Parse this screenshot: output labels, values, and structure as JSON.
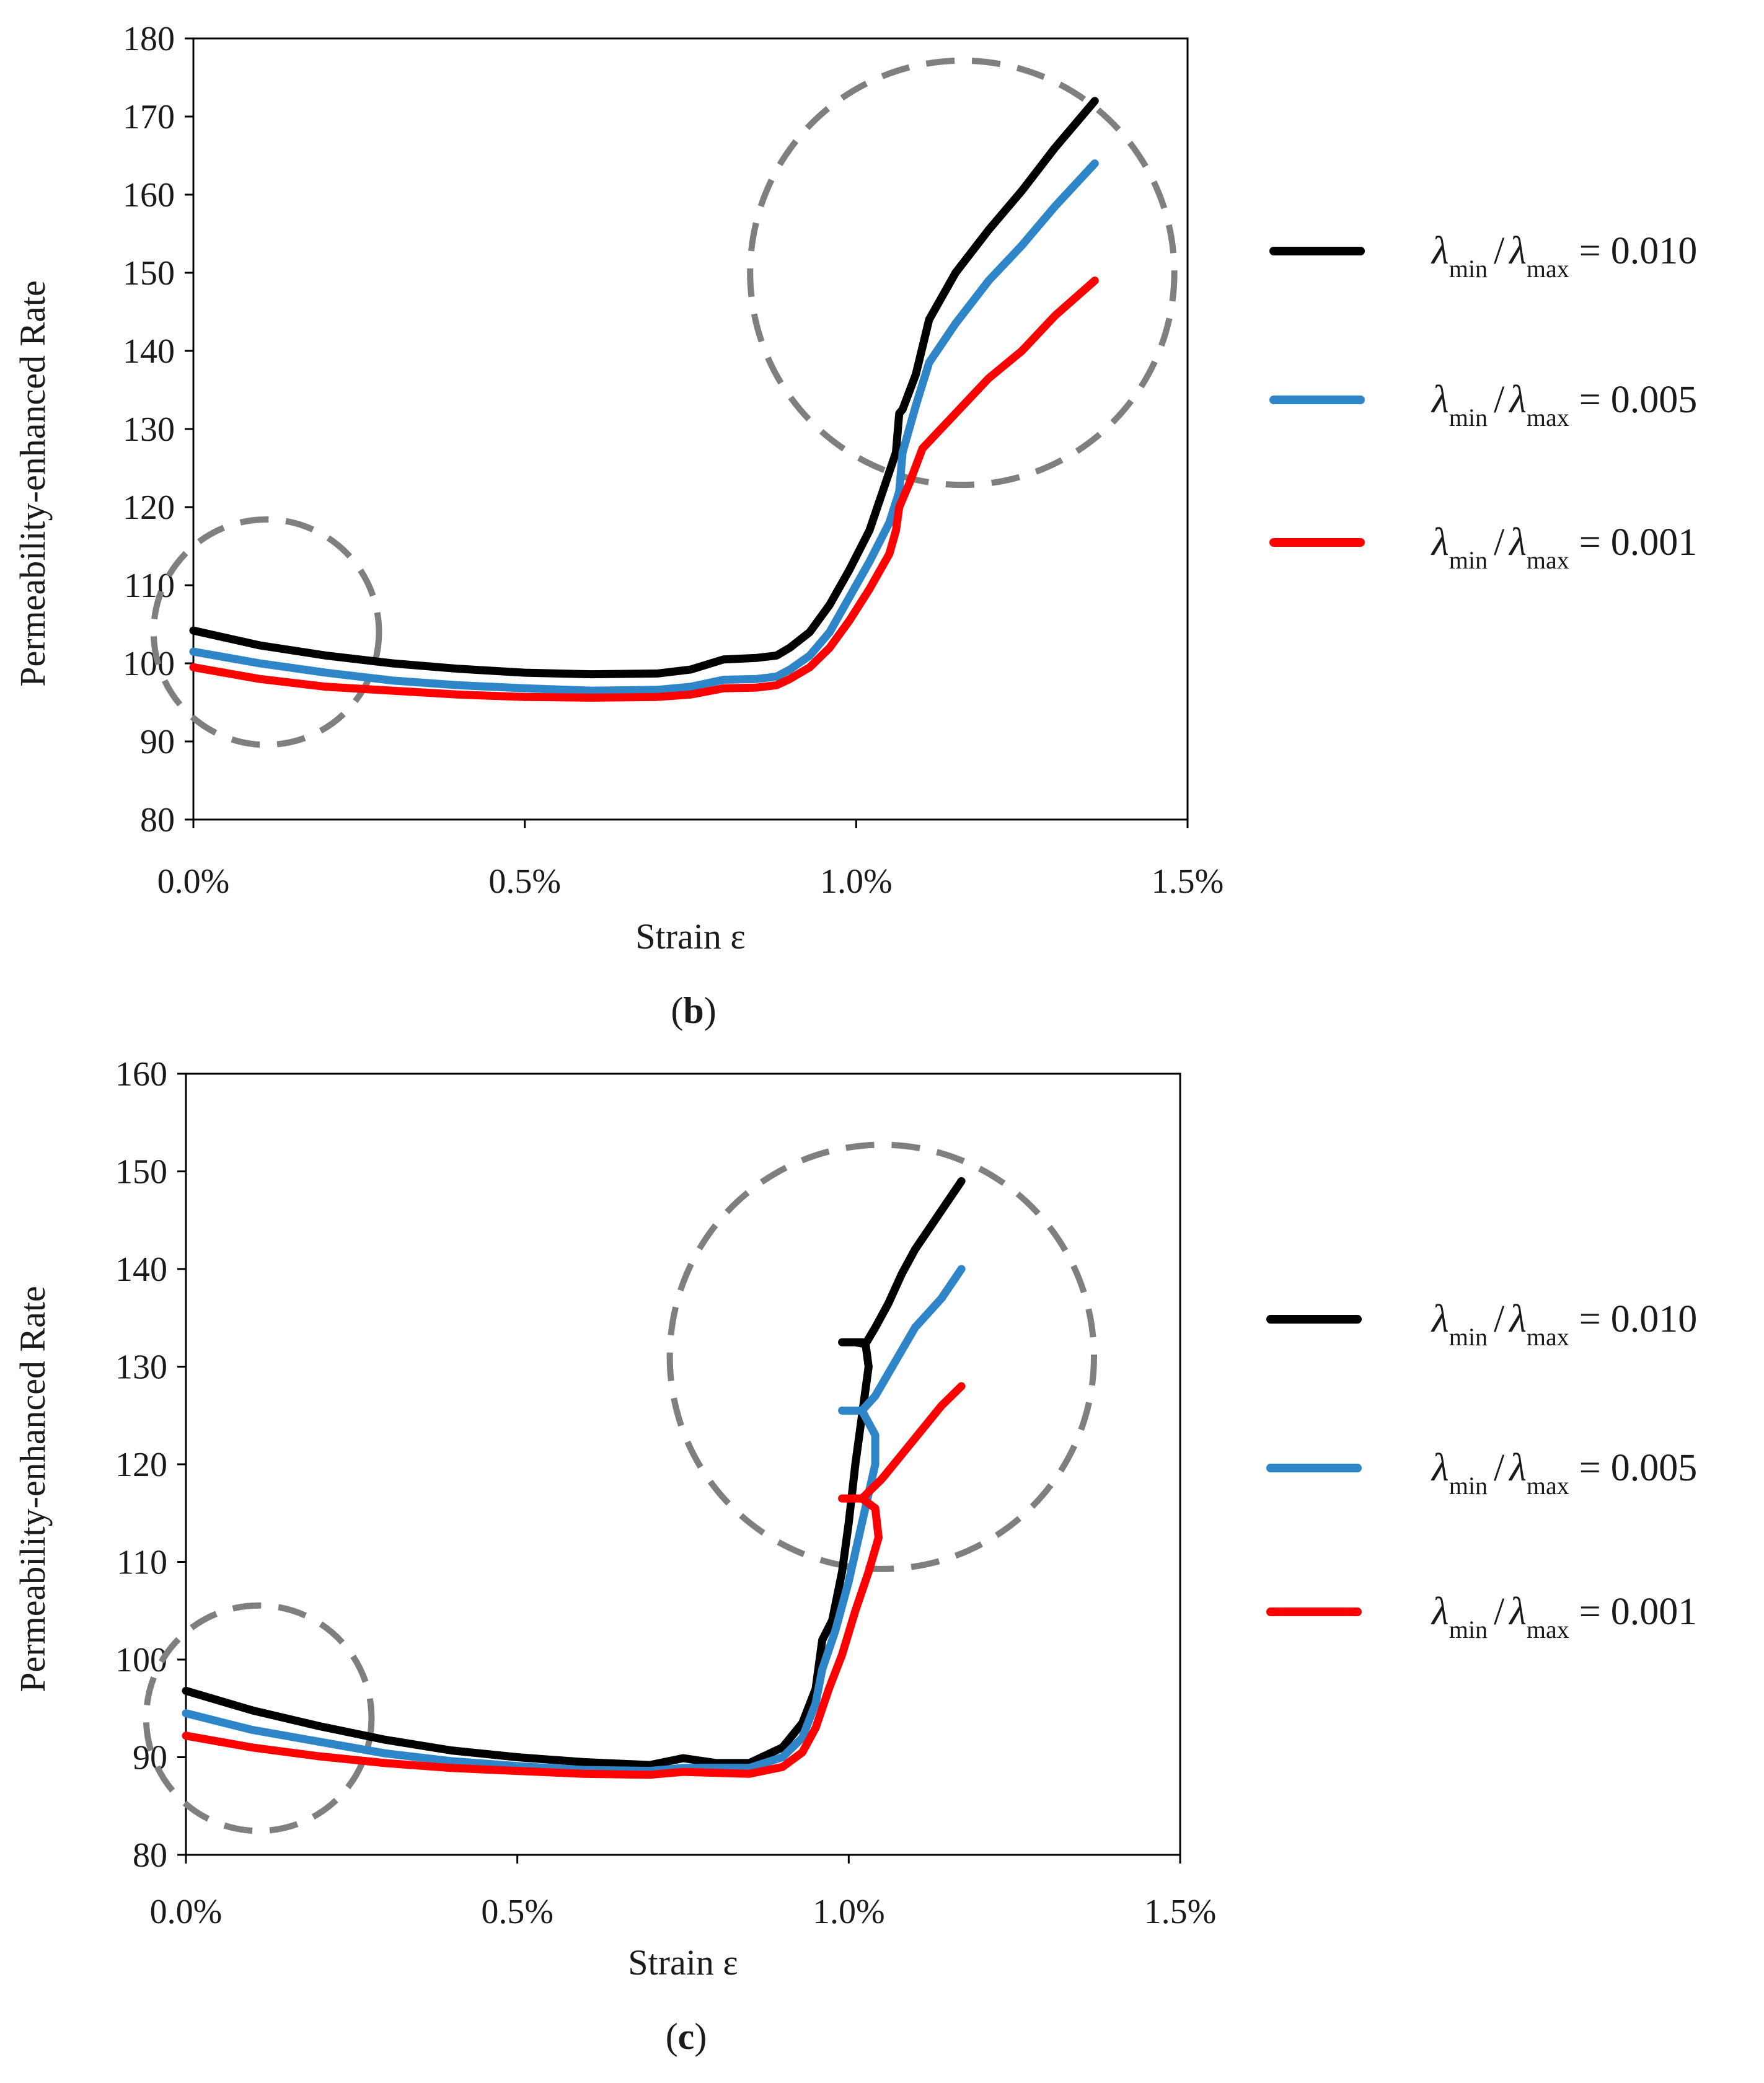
{
  "chart_data": [
    {
      "id": "b",
      "panel_label": "b",
      "type": "line",
      "title": "",
      "xlabel": "Strain ε",
      "ylabel": "Permeability-enhanced Rate",
      "xlim": [
        0,
        1.5
      ],
      "ylim": [
        80,
        180
      ],
      "xticks": [
        0,
        0.5,
        1.0,
        1.5
      ],
      "xtick_labels": [
        "0.0%",
        "0.5%",
        "1.0%",
        "1.5%"
      ],
      "yticks": [
        80,
        90,
        100,
        110,
        120,
        130,
        140,
        150,
        160,
        170,
        180
      ],
      "ytick_labels": [
        "80",
        "90",
        "100",
        "110",
        "120",
        "130",
        "140",
        "150",
        "160",
        "170",
        "180"
      ],
      "grid": false,
      "legend_position": "right",
      "highlight_circles": [
        {
          "cx": 0.11,
          "cy": 104,
          "r_x": 0.17
        },
        {
          "cx": 1.16,
          "cy": 150,
          "r_x": 0.32
        }
      ],
      "series": [
        {
          "name": "λmin/λmax = 0.010",
          "ratio": "0.010",
          "color": "#000000",
          "points": [
            [
              0,
              104.2
            ],
            [
              0.1,
              102.3
            ],
            [
              0.2,
              101.0
            ],
            [
              0.3,
              100.0
            ],
            [
              0.4,
              99.3
            ],
            [
              0.5,
              98.8
            ],
            [
              0.6,
              98.6
            ],
            [
              0.7,
              98.7
            ],
            [
              0.75,
              99.2
            ],
            [
              0.8,
              100.5
            ],
            [
              0.85,
              100.7
            ],
            [
              0.88,
              101.0
            ],
            [
              0.9,
              102.0
            ],
            [
              0.93,
              104.0
            ],
            [
              0.96,
              107.5
            ],
            [
              0.99,
              112.0
            ],
            [
              1.02,
              117.0
            ],
            [
              1.04,
              122.0
            ],
            [
              1.06,
              127.0
            ],
            [
              1.065,
              132.0
            ],
            [
              1.07,
              132.5
            ],
            [
              1.09,
              137.0
            ],
            [
              1.11,
              144.0
            ],
            [
              1.15,
              150.0
            ],
            [
              1.2,
              155.5
            ],
            [
              1.25,
              160.5
            ],
            [
              1.3,
              166.0
            ],
            [
              1.36,
              172.0
            ]
          ]
        },
        {
          "name": "λmin/λmax = 0.005",
          "ratio": "0.005",
          "color": "#2e86c8",
          "points": [
            [
              0,
              101.5
            ],
            [
              0.1,
              100.0
            ],
            [
              0.2,
              98.8
            ],
            [
              0.3,
              97.8
            ],
            [
              0.4,
              97.2
            ],
            [
              0.5,
              96.8
            ],
            [
              0.6,
              96.5
            ],
            [
              0.7,
              96.6
            ],
            [
              0.75,
              97.0
            ],
            [
              0.8,
              97.9
            ],
            [
              0.85,
              98.0
            ],
            [
              0.88,
              98.3
            ],
            [
              0.9,
              99.2
            ],
            [
              0.93,
              101.0
            ],
            [
              0.96,
              104.0
            ],
            [
              0.99,
              108.5
            ],
            [
              1.02,
              113.0
            ],
            [
              1.05,
              118.0
            ],
            [
              1.065,
              122.0
            ],
            [
              1.07,
              127.0
            ],
            [
              1.09,
              133.0
            ],
            [
              1.11,
              138.5
            ],
            [
              1.15,
              143.5
            ],
            [
              1.2,
              149.0
            ],
            [
              1.25,
              153.5
            ],
            [
              1.3,
              158.5
            ],
            [
              1.36,
              164.0
            ]
          ]
        },
        {
          "name": "λmin/λmax = 0.001",
          "ratio": "0.001",
          "color": "#ff0000",
          "points": [
            [
              0,
              99.5
            ],
            [
              0.1,
              98.0
            ],
            [
              0.2,
              97.0
            ],
            [
              0.3,
              96.5
            ],
            [
              0.4,
              96.0
            ],
            [
              0.5,
              95.7
            ],
            [
              0.6,
              95.6
            ],
            [
              0.7,
              95.7
            ],
            [
              0.75,
              96.0
            ],
            [
              0.8,
              96.8
            ],
            [
              0.85,
              96.9
            ],
            [
              0.88,
              97.2
            ],
            [
              0.9,
              98.0
            ],
            [
              0.93,
              99.5
            ],
            [
              0.96,
              102.0
            ],
            [
              0.99,
              105.5
            ],
            [
              1.02,
              109.5
            ],
            [
              1.05,
              114.0
            ],
            [
              1.06,
              117.0
            ],
            [
              1.065,
              120.0
            ],
            [
              1.08,
              123.0
            ],
            [
              1.1,
              127.5
            ],
            [
              1.15,
              132.0
            ],
            [
              1.2,
              136.5
            ],
            [
              1.25,
              140.0
            ],
            [
              1.3,
              144.5
            ],
            [
              1.36,
              149.0
            ]
          ]
        }
      ]
    },
    {
      "id": "c",
      "panel_label": "c",
      "type": "line",
      "title": "",
      "xlabel": "Strain ε",
      "ylabel": "Permeability-enhanced Rate",
      "xlim": [
        0,
        1.5
      ],
      "ylim": [
        80,
        160
      ],
      "xticks": [
        0,
        0.5,
        1.0,
        1.5
      ],
      "xtick_labels": [
        "0.0%",
        "0.5%",
        "1.0%",
        "1.5%"
      ],
      "yticks": [
        80,
        90,
        100,
        110,
        120,
        130,
        140,
        150,
        160
      ],
      "ytick_labels": [
        "80",
        "90",
        "100",
        "110",
        "120",
        "130",
        "140",
        "150",
        "160"
      ],
      "grid": false,
      "legend_position": "right",
      "highlight_circles": [
        {
          "cx": 0.11,
          "cy": 94,
          "r_x": 0.17
        },
        {
          "cx": 1.05,
          "cy": 131,
          "r_x": 0.32
        }
      ],
      "series": [
        {
          "name": "λmin/λmax = 0.010",
          "ratio": "0.010",
          "color": "#000000",
          "points": [
            [
              0,
              96.8
            ],
            [
              0.1,
              94.8
            ],
            [
              0.2,
              93.2
            ],
            [
              0.3,
              91.8
            ],
            [
              0.4,
              90.7
            ],
            [
              0.5,
              90.0
            ],
            [
              0.6,
              89.5
            ],
            [
              0.7,
              89.2
            ],
            [
              0.75,
              89.9
            ],
            [
              0.8,
              89.4
            ],
            [
              0.85,
              89.4
            ],
            [
              0.9,
              91.0
            ],
            [
              0.93,
              93.5
            ],
            [
              0.95,
              97.0
            ],
            [
              0.96,
              102.0
            ],
            [
              0.975,
              104.0
            ],
            [
              0.99,
              109.0
            ],
            [
              1.0,
              114.0
            ],
            [
              1.01,
              120.0
            ],
            [
              1.02,
              125.0
            ],
            [
              1.03,
              130.0
            ],
            [
              1.025,
              132.5
            ],
            [
              1.01,
              132.5
            ],
            [
              0.99,
              132.5
            ],
            [
              1.01,
              132.5
            ],
            [
              1.025,
              132.3
            ],
            [
              1.04,
              134.0
            ],
            [
              1.06,
              136.5
            ],
            [
              1.08,
              139.5
            ],
            [
              1.1,
              142.0
            ],
            [
              1.13,
              145.0
            ],
            [
              1.17,
              149.0
            ]
          ]
        },
        {
          "name": "λmin/λmax = 0.005",
          "ratio": "0.005",
          "color": "#2e86c8",
          "points": [
            [
              0,
              94.5
            ],
            [
              0.1,
              92.8
            ],
            [
              0.2,
              91.6
            ],
            [
              0.3,
              90.4
            ],
            [
              0.4,
              89.6
            ],
            [
              0.5,
              89.1
            ],
            [
              0.6,
              88.7
            ],
            [
              0.7,
              88.6
            ],
            [
              0.75,
              88.9
            ],
            [
              0.8,
              88.9
            ],
            [
              0.85,
              88.9
            ],
            [
              0.9,
              90.0
            ],
            [
              0.93,
              92.0
            ],
            [
              0.95,
              95.5
            ],
            [
              0.96,
              99.0
            ],
            [
              0.98,
              103.0
            ],
            [
              1.0,
              108.0
            ],
            [
              1.02,
              114.0
            ],
            [
              1.04,
              120.0
            ],
            [
              1.04,
              123.0
            ],
            [
              1.02,
              125.5
            ],
            [
              0.99,
              125.5
            ],
            [
              1.02,
              125.5
            ],
            [
              1.04,
              127.0
            ],
            [
              1.07,
              130.5
            ],
            [
              1.1,
              134.0
            ],
            [
              1.14,
              137.0
            ],
            [
              1.17,
              140.0
            ]
          ]
        },
        {
          "name": "λmin/λmax = 0.001",
          "ratio": "0.001",
          "color": "#ff0000",
          "points": [
            [
              0,
              92.2
            ],
            [
              0.1,
              91.0
            ],
            [
              0.2,
              90.1
            ],
            [
              0.3,
              89.4
            ],
            [
              0.4,
              88.9
            ],
            [
              0.5,
              88.6
            ],
            [
              0.6,
              88.3
            ],
            [
              0.7,
              88.2
            ],
            [
              0.75,
              88.5
            ],
            [
              0.8,
              88.4
            ],
            [
              0.85,
              88.3
            ],
            [
              0.9,
              89.0
            ],
            [
              0.93,
              90.5
            ],
            [
              0.95,
              93.0
            ],
            [
              0.97,
              97.0
            ],
            [
              0.99,
              100.5
            ],
            [
              1.01,
              105.0
            ],
            [
              1.03,
              109.0
            ],
            [
              1.045,
              112.5
            ],
            [
              1.04,
              115.5
            ],
            [
              1.02,
              116.5
            ],
            [
              0.99,
              116.5
            ],
            [
              1.02,
              116.5
            ],
            [
              1.05,
              118.5
            ],
            [
              1.08,
              121.0
            ],
            [
              1.11,
              123.5
            ],
            [
              1.14,
              126.0
            ],
            [
              1.17,
              128.0
            ]
          ]
        }
      ]
    }
  ],
  "legend_text": {
    "lambda": "λ",
    "min": "min",
    "max": "max",
    "slash": "/",
    "equals": "="
  }
}
